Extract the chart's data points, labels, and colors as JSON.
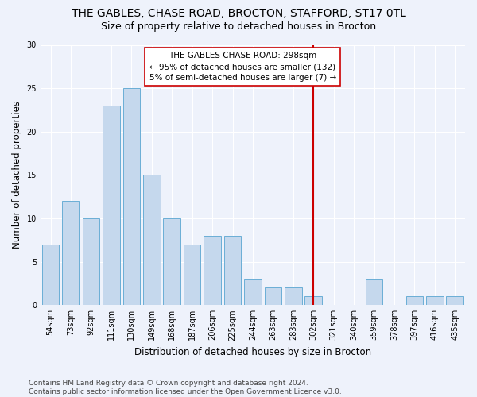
{
  "title": "THE GABLES, CHASE ROAD, BROCTON, STAFFORD, ST17 0TL",
  "subtitle": "Size of property relative to detached houses in Brocton",
  "xlabel": "Distribution of detached houses by size in Brocton",
  "ylabel": "Number of detached properties",
  "categories": [
    "54sqm",
    "73sqm",
    "92sqm",
    "111sqm",
    "130sqm",
    "149sqm",
    "168sqm",
    "187sqm",
    "206sqm",
    "225sqm",
    "244sqm",
    "263sqm",
    "283sqm",
    "302sqm",
    "321sqm",
    "340sqm",
    "359sqm",
    "378sqm",
    "397sqm",
    "416sqm",
    "435sqm"
  ],
  "values": [
    7,
    12,
    10,
    23,
    25,
    15,
    10,
    7,
    8,
    8,
    3,
    2,
    2,
    1,
    0,
    0,
    3,
    0,
    1,
    1,
    1
  ],
  "bar_color": "#c5d8ed",
  "bar_edge_color": "#6aaed6",
  "vline_x_index": 13,
  "vline_color": "#cc0000",
  "annotation_line1": "THE GABLES CHASE ROAD: 298sqm",
  "annotation_line2": "← 95% of detached houses are smaller (132)",
  "annotation_line3": "5% of semi-detached houses are larger (7) →",
  "annotation_box_color": "#ffffff",
  "annotation_box_edge": "#cc0000",
  "ylim": [
    0,
    30
  ],
  "yticks": [
    0,
    5,
    10,
    15,
    20,
    25,
    30
  ],
  "footer_text": "Contains HM Land Registry data © Crown copyright and database right 2024.\nContains public sector information licensed under the Open Government Licence v3.0.",
  "bg_color": "#eef2fb",
  "grid_color": "#ffffff",
  "title_fontsize": 10,
  "subtitle_fontsize": 9,
  "axis_label_fontsize": 8.5,
  "tick_fontsize": 7,
  "annotation_fontsize": 7.5,
  "footer_fontsize": 6.5
}
